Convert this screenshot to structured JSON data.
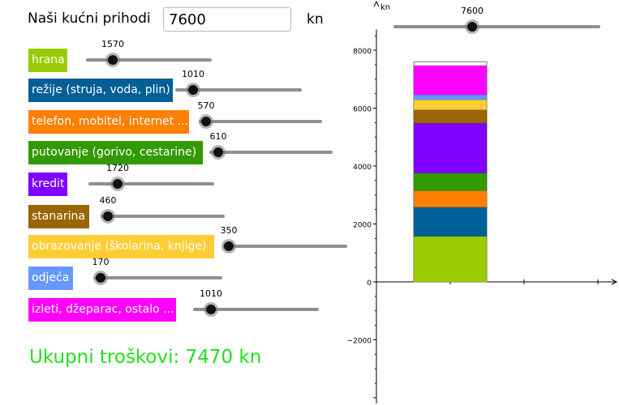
{
  "header": {
    "title": "Naši kućni prihodi",
    "income_value": "7600",
    "unit": "kn"
  },
  "categories": [
    {
      "label": "hrana",
      "value": 1570,
      "color": "#99cc00"
    },
    {
      "label": "režije (struja, voda, plin)",
      "value": 1010,
      "color": "#005f96"
    },
    {
      "label": "telefon, mobitel, internet ...",
      "value": 570,
      "color": "#ff7f00"
    },
    {
      "label": "putovanje (gorivo, cestarine)",
      "value": 610,
      "color": "#339900"
    },
    {
      "label": "kredit",
      "value": 1720,
      "color": "#7f00ff"
    },
    {
      "label": "stanarina",
      "value": 460,
      "color": "#996600"
    },
    {
      "label": "obrazovanje (školarina, knjige)",
      "value": 350,
      "color": "#ffcc33"
    },
    {
      "label": "odjeća",
      "value": 170,
      "color": "#6699ff"
    },
    {
      "label": "izleti, džeparac, ostalo ...",
      "value": 1010,
      "color": "#ff00ff"
    }
  ],
  "total": {
    "text": "Ukupni troškovi: 7470 kn"
  },
  "chart_data": {
    "type": "bar",
    "stacked": true,
    "y_axis_label": "kn",
    "ylim": [
      -2500,
      9000
    ],
    "y_ticks": [
      -2000,
      0,
      2000,
      4000,
      6000,
      8000
    ],
    "income_slider_value": 7600,
    "income_bar_value": 7600,
    "series": [
      {
        "name": "hrana",
        "values": [
          1570
        ]
      },
      {
        "name": "režije (struja, voda, plin)",
        "values": [
          1010
        ]
      },
      {
        "name": "telefon, mobitel, internet ...",
        "values": [
          570
        ]
      },
      {
        "name": "putovanje (gorivo, cestarine)",
        "values": [
          610
        ]
      },
      {
        "name": "kredit",
        "values": [
          1720
        ]
      },
      {
        "name": "stanarina",
        "values": [
          460
        ]
      },
      {
        "name": "obrazovanje (školarina, knjige)",
        "values": [
          350
        ]
      },
      {
        "name": "odjeća",
        "values": [
          170
        ]
      },
      {
        "name": "izleti, džeparac, ostalo ...",
        "values": [
          1010
        ]
      }
    ]
  }
}
